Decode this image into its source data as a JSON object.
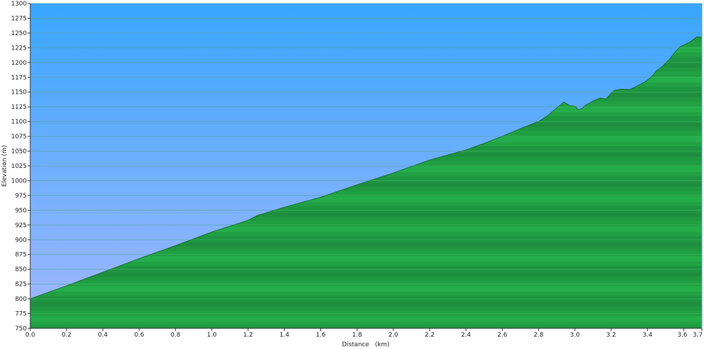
{
  "chart_data": {
    "type": "area",
    "xlabel": "Distance   (km)",
    "ylabel": "Elevation (m)",
    "xlim": [
      0,
      3.7
    ],
    "ylim": [
      750,
      1300
    ],
    "x_ticks": [
      0.0,
      0.2,
      0.4,
      0.6,
      0.8,
      1.0,
      1.2,
      1.4,
      1.6,
      1.8,
      2.0,
      2.2,
      2.4,
      2.6,
      2.8,
      3.0,
      3.2,
      3.4,
      3.6,
      3.7
    ],
    "x_tick_labels": [
      "0.0",
      "0.2",
      "0.4",
      "0.6",
      "0.8",
      "1.0",
      "1.2",
      "1.4",
      "1.6",
      "1.8",
      "2.0",
      "2.2",
      "2.4",
      "2.6",
      "2.8",
      "3.0",
      "3.2",
      "3.4",
      "3.6",
      "3.7"
    ],
    "y_ticks": [
      750,
      775,
      800,
      825,
      850,
      875,
      900,
      925,
      950,
      975,
      1000,
      1025,
      1050,
      1075,
      1100,
      1125,
      1150,
      1175,
      1200,
      1225,
      1250,
      1275,
      1300
    ],
    "y_tick_labels": [
      "750",
      "775",
      "800",
      "825",
      "850",
      "875",
      "900",
      "925",
      "950",
      "975",
      "1000",
      "1025",
      "1050",
      "1075",
      "1100",
      "1125",
      "1150",
      "1175",
      "1200",
      "1225",
      "1250",
      "1275",
      "1300"
    ],
    "grid": true,
    "x": [
      0.0,
      0.2,
      0.4,
      0.6,
      0.8,
      1.0,
      1.2,
      1.25,
      1.4,
      1.6,
      1.8,
      2.0,
      2.2,
      2.4,
      2.5,
      2.6,
      2.7,
      2.8,
      2.85,
      2.9,
      2.94,
      2.97,
      3.0,
      3.02,
      3.04,
      3.06,
      3.08,
      3.1,
      3.14,
      3.17,
      3.2,
      3.22,
      3.26,
      3.3,
      3.33,
      3.36,
      3.39,
      3.42,
      3.45,
      3.48,
      3.52,
      3.55,
      3.58,
      3.61,
      3.64,
      3.67,
      3.7
    ],
    "y": [
      800,
      822,
      845,
      868,
      890,
      913,
      933,
      941,
      955,
      972,
      993,
      1013,
      1035,
      1052,
      1063,
      1075,
      1088,
      1100,
      1110,
      1123,
      1133,
      1127,
      1126,
      1120,
      1122,
      1128,
      1131,
      1135,
      1140,
      1138,
      1148,
      1153,
      1155,
      1154,
      1158,
      1163,
      1168,
      1175,
      1186,
      1193,
      1205,
      1217,
      1227,
      1231,
      1236,
      1243,
      1243
    ]
  }
}
